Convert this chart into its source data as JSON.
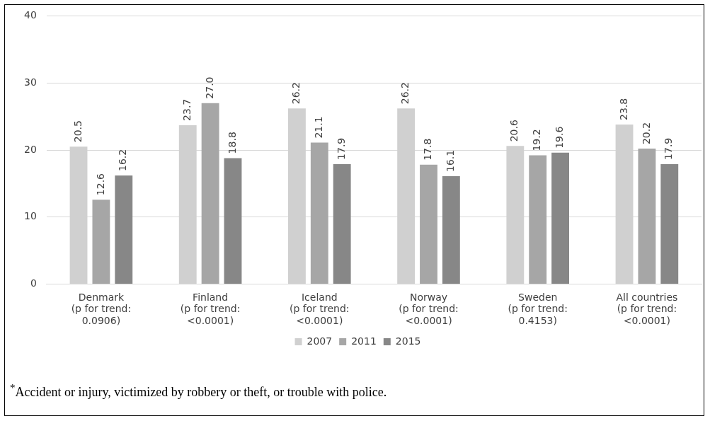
{
  "chart_data": {
    "type": "bar",
    "categories": [
      "Denmark\n(p for trend:\n0.0906)",
      "Finland\n(p for trend:\n<0.0001)",
      "Iceland\n(p for trend:\n<0.0001)",
      "Norway\n(p for trend:\n<0.0001)",
      "Sweden\n(p for trend:\n0.4153)",
      "All countries\n(p for trend:\n<0.0001)"
    ],
    "series": [
      {
        "name": "2007",
        "color": "#d0d0d0",
        "values": [
          20.5,
          23.7,
          26.2,
          26.2,
          20.6,
          23.8
        ]
      },
      {
        "name": "2011",
        "color": "#a6a6a6",
        "values": [
          12.6,
          27.0,
          21.1,
          17.8,
          19.2,
          20.2
        ],
        "value_labels": [
          "12.6",
          "27.0",
          "21.1",
          "17.8",
          "19.2",
          "20.2"
        ]
      },
      {
        "name": "2015",
        "color": "#878787",
        "values": [
          16.2,
          18.8,
          17.9,
          16.1,
          19.6,
          17.9
        ]
      }
    ],
    "ylim": [
      0,
      40
    ],
    "yticks": [
      0,
      10,
      20,
      30,
      40
    ],
    "grid": "y",
    "legend": "bottom",
    "data_labels": true,
    "annotations": [
      "$^{*}$Accident or injury, victimized by robbery or theft, or trouble with police."
    ]
  }
}
